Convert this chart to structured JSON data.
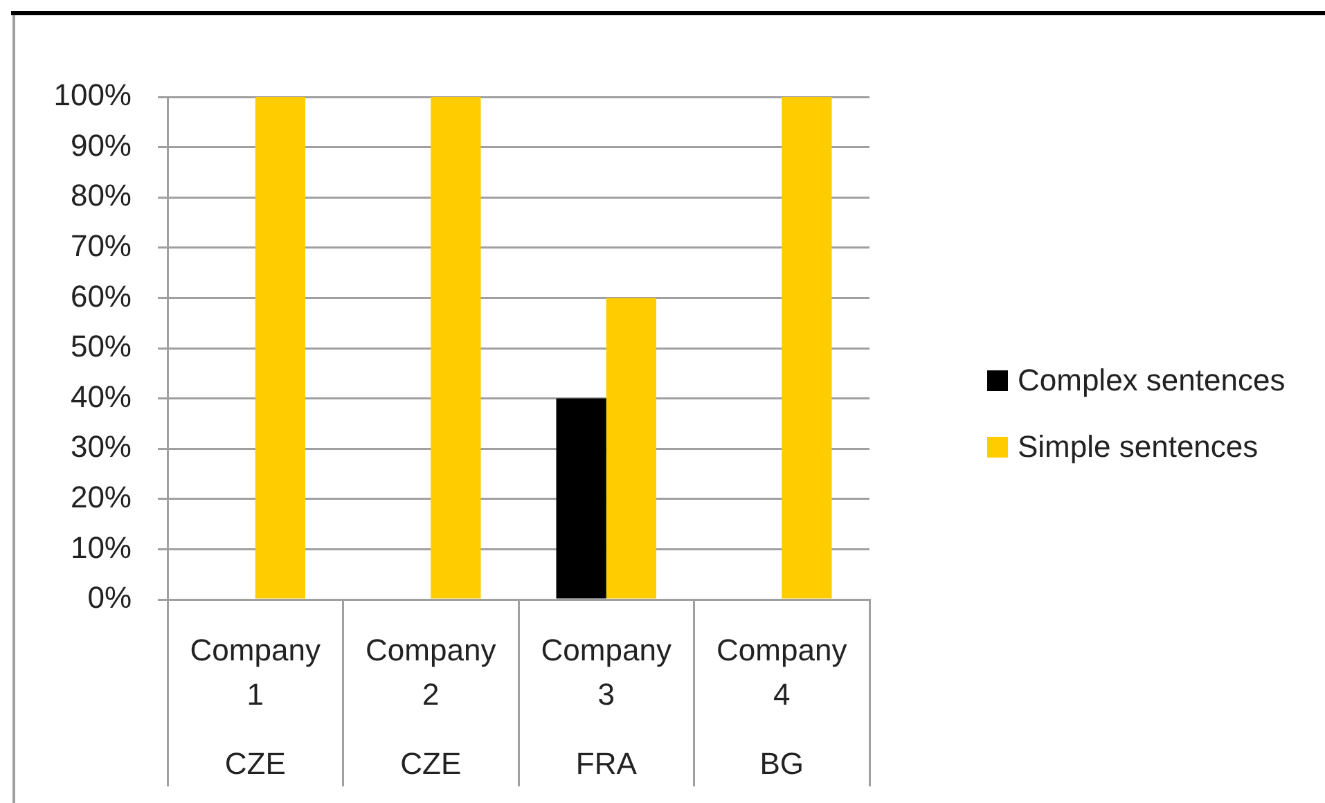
{
  "chart_data": {
    "type": "bar",
    "categories": [
      "Company 1\nCZE",
      "Company 2\nCZE",
      "Company 3\nFRA",
      "Company 4\nBG"
    ],
    "series": [
      {
        "name": "Complex sentences",
        "color": "#000000",
        "values": [
          0,
          0,
          40,
          0
        ]
      },
      {
        "name": "Simple sentences",
        "color": "#ffcc00",
        "values": [
          100,
          100,
          60,
          100
        ]
      }
    ],
    "ylim": [
      0,
      100
    ],
    "yticks": [
      {
        "value": 0,
        "label": "0%"
      },
      {
        "value": 10,
        "label": "10%"
      },
      {
        "value": 20,
        "label": "20%"
      },
      {
        "value": 30,
        "label": "30%"
      },
      {
        "value": 40,
        "label": "40%"
      },
      {
        "value": 50,
        "label": "50%"
      },
      {
        "value": 60,
        "label": "60%"
      },
      {
        "value": 70,
        "label": "70%"
      },
      {
        "value": 80,
        "label": "80%"
      },
      {
        "value": 90,
        "label": "90%"
      },
      {
        "value": 100,
        "label": "100%"
      }
    ],
    "grid": "y",
    "legend": "right"
  }
}
